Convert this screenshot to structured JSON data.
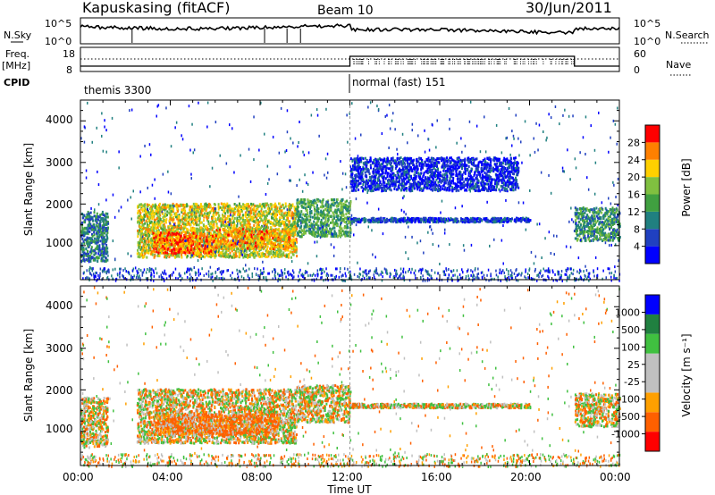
{
  "header": {
    "station": "Kapuskasing (fitACF)",
    "beam": "Beam 10",
    "date": "30/Jun/2011"
  },
  "noise_panel": {
    "left_label": "N.Sky",
    "right_label": "N.Search",
    "yticks": [
      "10^5",
      "10^0"
    ]
  },
  "freq_panel": {
    "left_label_1": "Freq.",
    "left_label_2": "[MHz]",
    "left_ticks": [
      "18",
      "8"
    ],
    "right_label": "Nave",
    "right_ticks": [
      "60",
      "0"
    ]
  },
  "cpid": {
    "label": "CPID",
    "modes": [
      {
        "name": "themis 3300",
        "start_hour": 0
      },
      {
        "name": "normal (fast) 151",
        "start_hour": 12
      }
    ]
  },
  "xaxis": {
    "label": "Time UT",
    "ticks": [
      "00:00",
      "04:00",
      "08:00",
      "12:00",
      "16:00",
      "20:00",
      "00:00"
    ]
  },
  "power_panel": {
    "ylabel": "Slant Range [km]",
    "yticks": [
      "1000",
      "2000",
      "3000",
      "4000"
    ],
    "colorbar_label": "Power [dB]",
    "colorbar_ticks": [
      "28",
      "24",
      "20",
      "16",
      "12",
      "8",
      "4"
    ]
  },
  "velocity_panel": {
    "ylabel": "Slant Range [km]",
    "yticks": [
      "1000",
      "2000",
      "3000",
      "4000"
    ],
    "colorbar_label": "Velocity [m s⁻¹]",
    "colorbar_ticks": [
      "1000",
      "500",
      "100",
      "25",
      "-25",
      "-100",
      "-500",
      "-1000"
    ]
  },
  "chart_data": [
    {
      "type": "heatmap",
      "title": "Power",
      "xlabel": "Time UT",
      "ylabel": "Slant Range [km]",
      "xlim_hours": [
        0,
        24
      ],
      "ylim_km": [
        180,
        4500
      ],
      "color_scale": {
        "label": "Power [dB]",
        "range": [
          0,
          32
        ],
        "colors": [
          "#0000ff",
          "#2040c0",
          "#208080",
          "#40a040",
          "#80c040",
          "#ffd000",
          "#ff8000",
          "#ff0000"
        ]
      },
      "echo_regions": [
        {
          "t": [
            0.0,
            1.2
          ],
          "r": [
            600,
            1800
          ],
          "power_db": 10
        },
        {
          "t": [
            2.5,
            9.6
          ],
          "r": [
            700,
            2000
          ],
          "power_db": 20
        },
        {
          "t": [
            3.2,
            6.0
          ],
          "r": [
            800,
            1300
          ],
          "power_db": 26
        },
        {
          "t": [
            6.0,
            9.6
          ],
          "r": [
            900,
            1400
          ],
          "power_db": 24
        },
        {
          "t": [
            9.6,
            12.0
          ],
          "r": [
            1200,
            2100
          ],
          "power_db": 14
        },
        {
          "t": [
            12.0,
            20.0
          ],
          "r": [
            1550,
            1650
          ],
          "power_db": 6
        },
        {
          "t": [
            12.0,
            19.5
          ],
          "r": [
            2300,
            3100
          ],
          "power_db": 4
        },
        {
          "t": [
            22.0,
            24.0
          ],
          "r": [
            1100,
            1900
          ],
          "power_db": 12
        }
      ]
    },
    {
      "type": "heatmap",
      "title": "Velocity",
      "xlabel": "Time UT",
      "ylabel": "Slant Range [km]",
      "xlim_hours": [
        0,
        24
      ],
      "ylim_km": [
        180,
        4500
      ],
      "color_scale": {
        "label": "Velocity [m s⁻¹]",
        "range": [
          -1000,
          1000
        ],
        "colors": [
          "#ff0000",
          "#ff6000",
          "#ffa000",
          "#c0c0c0",
          "#c0c0c0",
          "#40c040",
          "#208040",
          "#0000ff"
        ]
      },
      "echo_regions": [
        {
          "t": [
            0.0,
            1.2
          ],
          "r": [
            600,
            1800
          ],
          "velocity": 0
        },
        {
          "t": [
            2.5,
            9.6
          ],
          "r": [
            700,
            2000
          ],
          "velocity": 0
        },
        {
          "t": [
            3.2,
            8.8
          ],
          "r": [
            900,
            1400
          ],
          "velocity": -150
        },
        {
          "t": [
            9.6,
            12.0
          ],
          "r": [
            1200,
            2100
          ],
          "velocity": 0
        },
        {
          "t": [
            12.0,
            20.0
          ],
          "r": [
            1550,
            1650
          ],
          "velocity": 0
        },
        {
          "t": [
            22.0,
            24.0
          ],
          "r": [
            1100,
            1900
          ],
          "velocity": 0
        }
      ]
    }
  ],
  "colors": {
    "frame": "#000000",
    "background": "#ffffff",
    "ground_scatter": "#c0c0c0"
  }
}
